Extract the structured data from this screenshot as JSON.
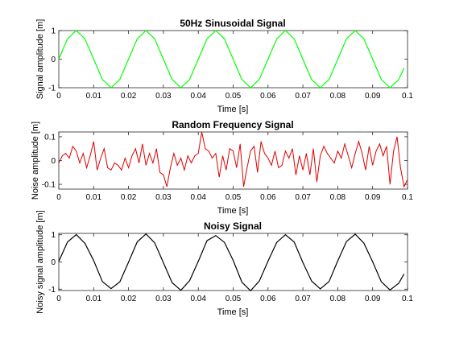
{
  "chart_data": [
    {
      "type": "line",
      "title": "50Hz Sinusoidal Signal",
      "xlabel": "Time [s]",
      "ylabel": "Signal amplitude [m]",
      "xlim": [
        0,
        0.1
      ],
      "ylim": [
        -1,
        1
      ],
      "xticks": [
        "0",
        "0.01",
        "0.02",
        "0.03",
        "0.04",
        "0.05",
        "0.06",
        "0.07",
        "0.08",
        "0.09",
        "0.1"
      ],
      "yticks": [
        "-1",
        "0",
        "1"
      ],
      "ytick_values": [
        -1,
        0,
        1
      ],
      "grid": false,
      "color": "#00ff00",
      "series": [
        {
          "x": [
            0,
            0.0025,
            0.005,
            0.0075,
            0.01,
            0.0125,
            0.015,
            0.0175,
            0.02,
            0.0225,
            0.025,
            0.0275,
            0.03,
            0.0325,
            0.035,
            0.0375,
            0.04,
            0.0425,
            0.045,
            0.0475,
            0.05,
            0.0525,
            0.055,
            0.0575,
            0.06,
            0.0625,
            0.065,
            0.0675,
            0.07,
            0.0725,
            0.075,
            0.0775,
            0.08,
            0.0825,
            0.085,
            0.0875,
            0.09,
            0.0925,
            0.095,
            0.0975,
            0.099
          ],
          "y": [
            0,
            0.71,
            1,
            0.71,
            0,
            -0.71,
            -1,
            -0.71,
            0,
            0.71,
            1,
            0.71,
            0,
            -0.71,
            -1,
            -0.71,
            0,
            0.71,
            1,
            0.71,
            0,
            -0.71,
            -1,
            -0.71,
            0,
            0.71,
            1,
            0.71,
            0,
            -0.71,
            -1,
            -0.71,
            0,
            0.71,
            1,
            0.71,
            0,
            -0.71,
            -1,
            -0.71,
            -0.31
          ]
        }
      ]
    },
    {
      "type": "line",
      "title": "Random Frequency Signal",
      "xlabel": "Time [s]",
      "ylabel": "Noise amplitude [m]",
      "xlim": [
        0,
        0.1
      ],
      "ylim": [
        -0.12,
        0.12
      ],
      "xticks": [
        "0",
        "0.01",
        "0.02",
        "0.03",
        "0.04",
        "0.05",
        "0.06",
        "0.07",
        "0.08",
        "0.09",
        "0.1"
      ],
      "yticks": [
        "-0.1",
        "0",
        "0.1"
      ],
      "ytick_values": [
        -0.1,
        0,
        0.1
      ],
      "grid": false,
      "color": "#e00000",
      "series": [
        {
          "x": [
            0,
            0.001,
            0.002,
            0.003,
            0.004,
            0.005,
            0.006,
            0.007,
            0.008,
            0.009,
            0.01,
            0.011,
            0.012,
            0.013,
            0.014,
            0.015,
            0.016,
            0.017,
            0.018,
            0.019,
            0.02,
            0.021,
            0.022,
            0.023,
            0.024,
            0.025,
            0.026,
            0.027,
            0.028,
            0.029,
            0.03,
            0.031,
            0.032,
            0.033,
            0.034,
            0.035,
            0.036,
            0.037,
            0.038,
            0.039,
            0.04,
            0.041,
            0.042,
            0.043,
            0.044,
            0.045,
            0.046,
            0.047,
            0.048,
            0.049,
            0.05,
            0.051,
            0.052,
            0.053,
            0.054,
            0.055,
            0.056,
            0.057,
            0.058,
            0.059,
            0.06,
            0.061,
            0.062,
            0.063,
            0.064,
            0.065,
            0.066,
            0.067,
            0.068,
            0.069,
            0.07,
            0.071,
            0.072,
            0.073,
            0.074,
            0.075,
            0.076,
            0.077,
            0.078,
            0.079,
            0.08,
            0.081,
            0.082,
            0.083,
            0.084,
            0.085,
            0.086,
            0.087,
            0.088,
            0.089,
            0.09,
            0.091,
            0.092,
            0.093,
            0.094,
            0.095,
            0.096,
            0.097,
            0.098,
            0.099,
            0.1
          ],
          "y": [
            -0.01,
            0.02,
            0.03,
            0.01,
            0.06,
            0.04,
            -0.01,
            0.03,
            -0.03,
            0.02,
            0.08,
            -0.04,
            0.01,
            0.05,
            -0.03,
            -0.04,
            -0.01,
            -0.02,
            -0.04,
            0.01,
            -0.03,
            0.02,
            0.05,
            -0.01,
            0.07,
            -0.02,
            0.03,
            -0.01,
            0.05,
            -0.05,
            -0.06,
            -0.11,
            -0.03,
            0.03,
            -0.02,
            0.01,
            -0.04,
            0.02,
            -0.01,
            0.02,
            0.03,
            0.12,
            0.05,
            0.04,
            0.01,
            0.03,
            -0.07,
            0.02,
            -0.04,
            0.05,
            0.04,
            -0.03,
            0.07,
            -0.11,
            -0.03,
            0.04,
            0.06,
            -0.05,
            0.08,
            0.03,
            0.01,
            -0.02,
            0.04,
            -0.03,
            -0.02,
            0.04,
            0.01,
            0.05,
            -0.06,
            0.02,
            -0.04,
            0.03,
            -0.06,
            0.05,
            -0.09,
            0.02,
            0.06,
            0.03,
            0.01,
            -0.01,
            0.04,
            0.01,
            0.07,
            0.02,
            -0.03,
            0.03,
            0.08,
            0.03,
            -0.04,
            0.06,
            -0.02,
            0.04,
            0.07,
            0.02,
            0.06,
            -0.1,
            0.04,
            0.1,
            -0.03,
            -0.11,
            -0.08
          ]
        }
      ]
    },
    {
      "type": "line",
      "title": "Noisy Signal",
      "xlabel": "Time [s]",
      "ylabel": "Noisy signal amplitude [m]",
      "xlim": [
        0,
        0.1
      ],
      "ylim": [
        -1.05,
        1.05
      ],
      "xticks": [
        "0",
        "0.01",
        "0.02",
        "0.03",
        "0.04",
        "0.05",
        "0.06",
        "0.07",
        "0.08",
        "0.09",
        "0.1"
      ],
      "yticks": [
        "-1",
        "0",
        "1"
      ],
      "ytick_values": [
        -1,
        0,
        1
      ],
      "grid": false,
      "color": "#000000",
      "series": [
        {
          "x": [
            0,
            0.0025,
            0.005,
            0.0075,
            0.01,
            0.0125,
            0.015,
            0.0175,
            0.02,
            0.0225,
            0.025,
            0.0275,
            0.03,
            0.0325,
            0.035,
            0.0375,
            0.04,
            0.0425,
            0.045,
            0.0475,
            0.05,
            0.0525,
            0.055,
            0.0575,
            0.06,
            0.0625,
            0.065,
            0.0675,
            0.07,
            0.0725,
            0.075,
            0.0775,
            0.08,
            0.0825,
            0.085,
            0.0875,
            0.09,
            0.0925,
            0.095,
            0.0975,
            0.099
          ],
          "y": [
            0.02,
            0.73,
            1.01,
            0.68,
            0.05,
            -0.72,
            -0.98,
            -0.73,
            -0.01,
            0.74,
            1.03,
            0.7,
            -0.03,
            -0.76,
            -1.04,
            -0.69,
            0.02,
            0.78,
            0.97,
            0.72,
            0.06,
            -0.74,
            -1.06,
            -0.7,
            0.03,
            0.72,
            1.0,
            0.73,
            -0.02,
            -0.7,
            -0.99,
            -0.72,
            0.04,
            0.75,
            1.02,
            0.69,
            0.01,
            -0.73,
            -1.03,
            -0.78,
            -0.44
          ]
        }
      ]
    }
  ]
}
